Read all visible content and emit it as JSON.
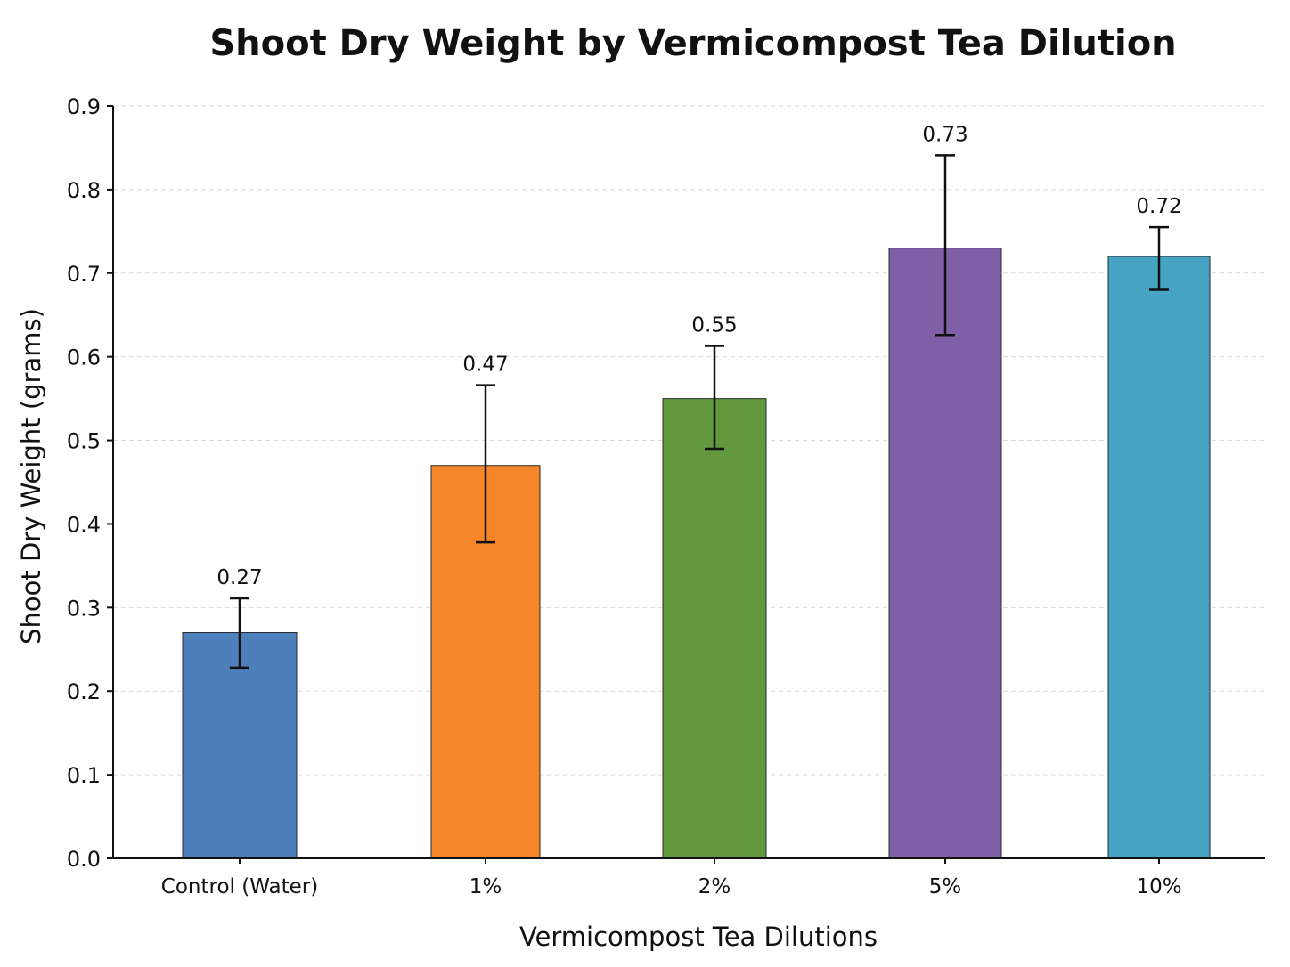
{
  "chart_data": {
    "type": "bar",
    "title": "Shoot Dry Weight by Vermicompost Tea Dilution",
    "xlabel": "Vermicompost Tea Dilutions",
    "ylabel": "Shoot Dry Weight (grams)",
    "categories": [
      "Control (Water)",
      "1%",
      "2%",
      "5%",
      "10%"
    ],
    "values": [
      0.27,
      0.47,
      0.55,
      0.73,
      0.72
    ],
    "value_labels": [
      "0.27",
      "0.47",
      "0.55",
      "0.73",
      "0.72"
    ],
    "error_low": [
      0.228,
      0.378,
      0.49,
      0.626,
      0.68
    ],
    "error_high": [
      0.311,
      0.566,
      0.613,
      0.841,
      0.755
    ],
    "colors": [
      "#4d7fbd",
      "#f5862a",
      "#62993f",
      "#7f5fa8",
      "#47a3c3"
    ],
    "ylim": [
      0.0,
      0.9
    ],
    "yticks": [
      0.0,
      0.1,
      0.2,
      0.3,
      0.4,
      0.5,
      0.6,
      0.7,
      0.8,
      0.9
    ],
    "ytick_labels": [
      "0.0",
      "0.1",
      "0.2",
      "0.3",
      "0.4",
      "0.5",
      "0.6",
      "0.7",
      "0.8",
      "0.9"
    ],
    "grid": "horizontal-dashed",
    "legend": "none"
  }
}
